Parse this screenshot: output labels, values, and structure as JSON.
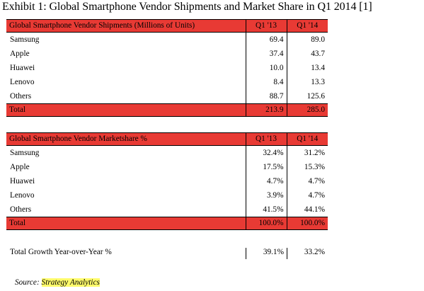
{
  "title": "Exhibit 1: Global Smartphone Vendor Shipments and Market Share in Q1 2014  [1]",
  "shipments": {
    "header": {
      "label": "Global Smartphone Vendor Shipments (Millions of Units)",
      "col1": "Q1 '13",
      "col2": "Q1 '14"
    },
    "rows": [
      {
        "label": "Samsung",
        "v1": "69.4",
        "v2": "89.0"
      },
      {
        "label": "Apple",
        "v1": "37.4",
        "v2": "43.7"
      },
      {
        "label": "Huawei",
        "v1": "10.0",
        "v2": "13.4"
      },
      {
        "label": "Lenovo",
        "v1": "8.4",
        "v2": "13.3"
      },
      {
        "label": "Others",
        "v1": "88.7",
        "v2": "125.6"
      }
    ],
    "total": {
      "label": "Total",
      "v1": "213.9",
      "v2": "285.0"
    }
  },
  "marketshare": {
    "header": {
      "label": "Global Smartphone Vendor Marketshare  %",
      "col1": "Q1 '13",
      "col2": "Q1 '14"
    },
    "rows": [
      {
        "label": "Samsung",
        "v1": "32.4%",
        "v2": "31.2%"
      },
      {
        "label": "Apple",
        "v1": "17.5%",
        "v2": "15.3%"
      },
      {
        "label": "Huawei",
        "v1": "4.7%",
        "v2": "4.7%"
      },
      {
        "label": "Lenovo",
        "v1": "3.9%",
        "v2": "4.7%"
      },
      {
        "label": "Others",
        "v1": "41.5%",
        "v2": "44.1%"
      }
    ],
    "total": {
      "label": "Total",
      "v1": "100.0%",
      "v2": "100.0%"
    }
  },
  "growth": {
    "label": "Total Growth Year-over-Year %",
    "v1": "39.1%",
    "v2": "33.2%"
  },
  "source": {
    "prefix": "Source: ",
    "name": "Strategy Analytics"
  },
  "colors": {
    "header_fill": "#e83a34",
    "source_highlight": "#fffb6b"
  }
}
